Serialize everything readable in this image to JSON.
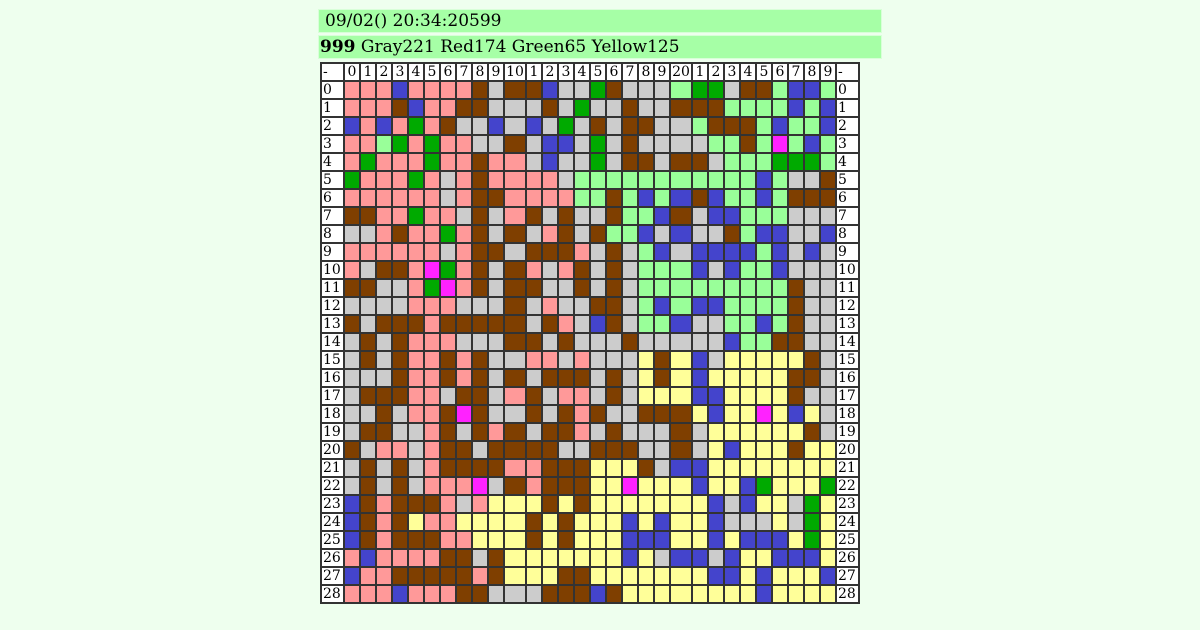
{
  "header": {
    "datetime": "09/02() 20:34:20599",
    "turn": "999",
    "scores": "Gray221 Red174 Green65 Yellow125"
  },
  "board": {
    "corner": "-",
    "columns": [
      "0",
      "1",
      "2",
      "3",
      "4",
      "5",
      "6",
      "7",
      "8",
      "9",
      "10",
      "1",
      "2",
      "3",
      "4",
      "5",
      "6",
      "7",
      "8",
      "9",
      "20",
      "1",
      "2",
      "3",
      "4",
      "5",
      "6",
      "7",
      "8",
      "9"
    ],
    "row_labels": [
      "0",
      "1",
      "2",
      "3",
      "4",
      "5",
      "6",
      "7",
      "8",
      "9",
      "10",
      "11",
      "12",
      "13",
      "14",
      "15",
      "16",
      "17",
      "18",
      "19",
      "20",
      "21",
      "22",
      "23",
      "24",
      "25",
      "26",
      "27",
      "28"
    ],
    "colors": {
      "gray": "#cccccc",
      "red": "#ff9999",
      "green": "#99ff99",
      "yellow": "#ffff99",
      "brown": "#7f3f00",
      "blue": "#4444cc",
      "dark_green": "#00aa00",
      "magenta": "#ff22ff"
    },
    "cell_code_legend": "0 gray, 1 red, 2 green, 3 yellow, 4 brown, 5 blue, 6 dark_green, 7 magenta",
    "rows": [
      "111511114044500640002660442552",
      "111451144000406004004442222525",
      "515161400505060404400244425225",
      "112616110040550604000022427252",
      "161116114110500604404402226662",
      "611161014111102222222222252004",
      "111111014411112242525452252444",
      "441161104014040042254055222000",
      "001411614040140422505004255005",
      "111111014404441040250555525050",
      "104417614041014040222505225000",
      "440016714044004040222222222400",
      "000011100040100440252552222400",
      "404441444440410540225002252400",
      "040411100044040004000005224400",
      "040411414001101000343503333340",
      "000411414040444040343533333440",
      "044411044014011040333553333400",
      "004011474004041400444353373530",
      "044001404140441040004033333340",
      "401101440444400444004035333433",
      "040401444411444333405533333333",
      "040401117041444337333533563336",
      "541444101333434333333350533063",
      "541431133334343335353350003063",
      "541444113334343335553353555363",
      "151111440433333335305505335553",
      "511444441433344333333355353335",
      "111511144000444543333333353333"
    ]
  }
}
